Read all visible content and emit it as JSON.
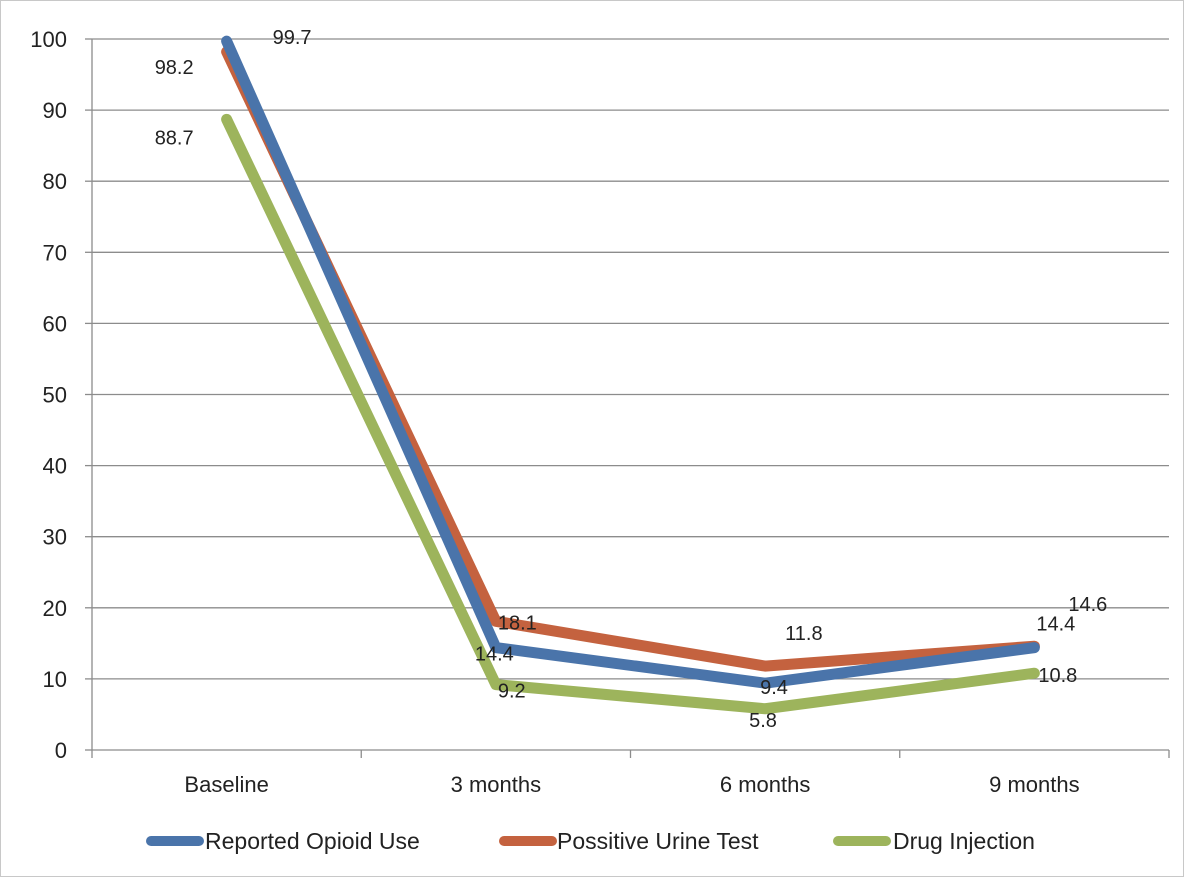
{
  "chart_data": {
    "type": "line",
    "title": "",
    "xlabel": "",
    "ylabel": "",
    "categories": [
      "Baseline",
      "3 months",
      "6 months",
      "9 months"
    ],
    "ylim": [
      0,
      100
    ],
    "yticks": [
      0,
      10,
      20,
      30,
      40,
      50,
      60,
      70,
      80,
      90,
      100
    ],
    "grid": "horizontal",
    "legend_position": "bottom",
    "series": [
      {
        "name": "Reported Opioid Use",
        "color": "#4a74aa",
        "values": [
          99.7,
          14.4,
          9.4,
          14.4
        ],
        "labels": [
          "99.7",
          "14.4",
          "9.4",
          "14.4"
        ]
      },
      {
        "name": "Possitive Urine Test",
        "color": "#c4623f",
        "values": [
          98.2,
          18.1,
          11.8,
          14.6
        ],
        "labels": [
          "98.2",
          "18.1",
          "11.8",
          "14.6"
        ]
      },
      {
        "name": "Drug Injection",
        "color": "#9db45c",
        "values": [
          88.7,
          9.2,
          5.8,
          10.8
        ],
        "labels": [
          "88.7",
          "9.2",
          "5.8",
          "10.8"
        ]
      }
    ]
  }
}
